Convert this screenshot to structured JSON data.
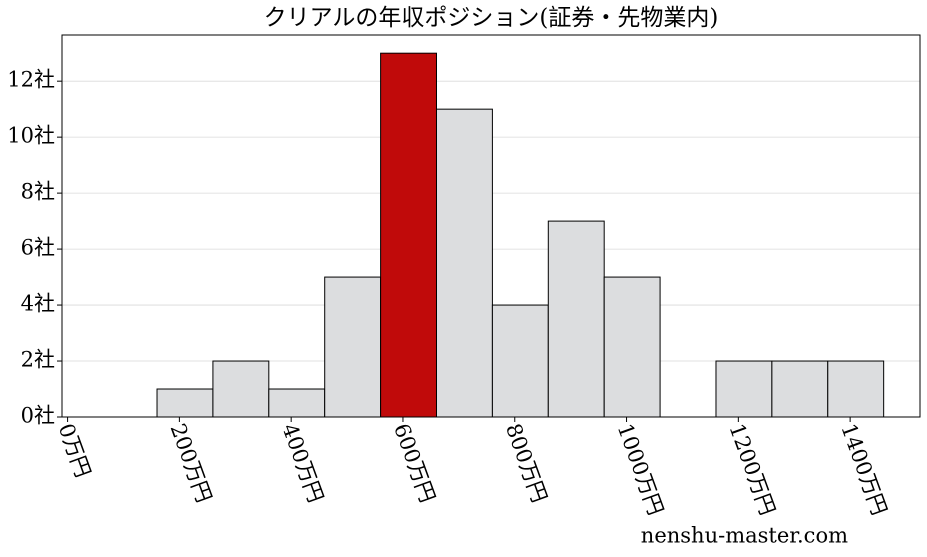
{
  "chart_data": {
    "type": "histogram",
    "title": "クリアルの年収ポジション(証券・先物業内)",
    "bins": [
      160,
      260,
      360,
      460,
      560,
      660,
      760,
      860,
      960,
      1060,
      1160,
      1260,
      1360,
      1460
    ],
    "values": [
      1,
      2,
      1,
      5,
      13,
      11,
      4,
      7,
      5,
      0,
      2,
      2,
      2
    ],
    "colors": [
      "#dcdddf",
      "#dcdddf",
      "#dcdddf",
      "#dcdddf",
      "#c00a0a",
      "#dcdddf",
      "#dcdddf",
      "#dcdddf",
      "#dcdddf",
      "#dcdddf",
      "#dcdddf",
      "#dcdddf",
      "#dcdddf"
    ],
    "edge_color": "#000000",
    "xlim": [
      -10,
      1525
    ],
    "xticks": [
      {
        "value": 0,
        "label": "0万円"
      },
      {
        "value": 200,
        "label": "200万円"
      },
      {
        "value": 400,
        "label": "400万円"
      },
      {
        "value": 600,
        "label": "600万円"
      },
      {
        "value": 800,
        "label": "800万円"
      },
      {
        "value": 1000,
        "label": "1000万円"
      },
      {
        "value": 1200,
        "label": "1200万円"
      },
      {
        "value": 1400,
        "label": "1400万円"
      }
    ],
    "ylim": [
      0,
      13.65
    ],
    "yticks": [
      {
        "value": 0,
        "label": "0社"
      },
      {
        "value": 2,
        "label": "2社"
      },
      {
        "value": 4,
        "label": "4社"
      },
      {
        "value": 6,
        "label": "6社"
      },
      {
        "value": 8,
        "label": "8社"
      },
      {
        "value": 10,
        "label": "10社"
      },
      {
        "value": 12,
        "label": "12社"
      }
    ],
    "grid": true,
    "source": "nenshu-master.com"
  }
}
